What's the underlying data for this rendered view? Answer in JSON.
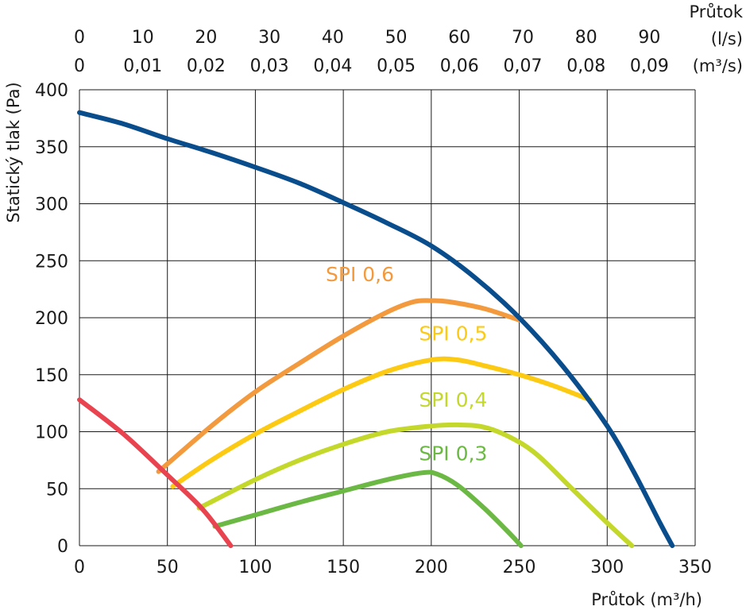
{
  "chart_data": {
    "type": "line",
    "ylabel": "Statický tlak  (Pa)",
    "xlabel": "Průtok (m³/h)",
    "x_ticks": [
      "0",
      "50",
      "100",
      "150",
      "200",
      "250",
      "300",
      "350"
    ],
    "y_ticks": [
      "0",
      "50",
      "100",
      "150",
      "200",
      "250",
      "300",
      "350",
      "400"
    ],
    "xlim": [
      0,
      350
    ],
    "ylim": [
      0,
      400
    ],
    "grid": true,
    "top_axis_title": "Průtok",
    "top_axis_ls": {
      "unit": "(l/s)",
      "ticks": [
        "0",
        "10",
        "20",
        "30",
        "40",
        "50",
        "60",
        "70",
        "80",
        "90"
      ],
      "ratio_m3h_per_unit": 3.6
    },
    "top_axis_m3s": {
      "unit": "(m³/s)",
      "ticks": [
        "0",
        "0,01",
        "0,02",
        "0,03",
        "0,04",
        "0,05",
        "0,06",
        "0,07",
        "0,08",
        "0,09"
      ],
      "ratio_m3h_per_unit": 3600
    },
    "series": [
      {
        "color": "#0a4d8c",
        "points": [
          [
            0,
            380
          ],
          [
            25,
            370
          ],
          [
            50,
            357
          ],
          [
            75,
            345
          ],
          [
            100,
            332
          ],
          [
            125,
            318
          ],
          [
            150,
            301
          ],
          [
            175,
            283
          ],
          [
            200,
            263
          ],
          [
            225,
            235
          ],
          [
            250,
            200
          ],
          [
            275,
            157
          ],
          [
            300,
            105
          ],
          [
            315,
            65
          ],
          [
            330,
            20
          ],
          [
            337,
            0
          ]
        ]
      },
      {
        "color": "#e8434f",
        "points": [
          [
            0,
            128
          ],
          [
            25,
            98
          ],
          [
            50,
            62
          ],
          [
            70,
            32
          ],
          [
            86,
            0
          ]
        ]
      },
      {
        "name": "SPI 0,6",
        "color": "#f29a3d",
        "label_at": [
          140,
          232
        ],
        "points": [
          [
            45,
            65
          ],
          [
            75,
            105
          ],
          [
            100,
            135
          ],
          [
            125,
            160
          ],
          [
            150,
            184
          ],
          [
            175,
            205
          ],
          [
            190,
            214
          ],
          [
            200,
            215
          ],
          [
            210,
            214
          ],
          [
            230,
            208
          ],
          [
            250,
            198
          ]
        ]
      },
      {
        "name": "SPI 0,5",
        "color": "#fcc913",
        "label_at": [
          193,
          180
        ],
        "points": [
          [
            53,
            52
          ],
          [
            75,
            75
          ],
          [
            100,
            98
          ],
          [
            125,
            118
          ],
          [
            150,
            137
          ],
          [
            175,
            153
          ],
          [
            200,
            163
          ],
          [
            215,
            163
          ],
          [
            230,
            158
          ],
          [
            250,
            150
          ],
          [
            270,
            140
          ],
          [
            290,
            128
          ]
        ]
      },
      {
        "name": "SPI 0,4",
        "color": "#c3d82b",
        "label_at": [
          193,
          122
        ],
        "points": [
          [
            68,
            33
          ],
          [
            100,
            58
          ],
          [
            125,
            75
          ],
          [
            150,
            89
          ],
          [
            175,
            100
          ],
          [
            200,
            105
          ],
          [
            215,
            106
          ],
          [
            230,
            104
          ],
          [
            245,
            95
          ],
          [
            260,
            80
          ],
          [
            280,
            50
          ],
          [
            300,
            20
          ],
          [
            314,
            0
          ]
        ]
      },
      {
        "name": "SPI 0,3",
        "color": "#6cb844",
        "label_at": [
          193,
          75
        ],
        "points": [
          [
            77,
            17
          ],
          [
            100,
            27
          ],
          [
            125,
            38
          ],
          [
            150,
            48
          ],
          [
            175,
            58
          ],
          [
            195,
            64
          ],
          [
            203,
            63
          ],
          [
            215,
            53
          ],
          [
            230,
            33
          ],
          [
            245,
            10
          ],
          [
            251,
            0
          ]
        ]
      }
    ]
  }
}
